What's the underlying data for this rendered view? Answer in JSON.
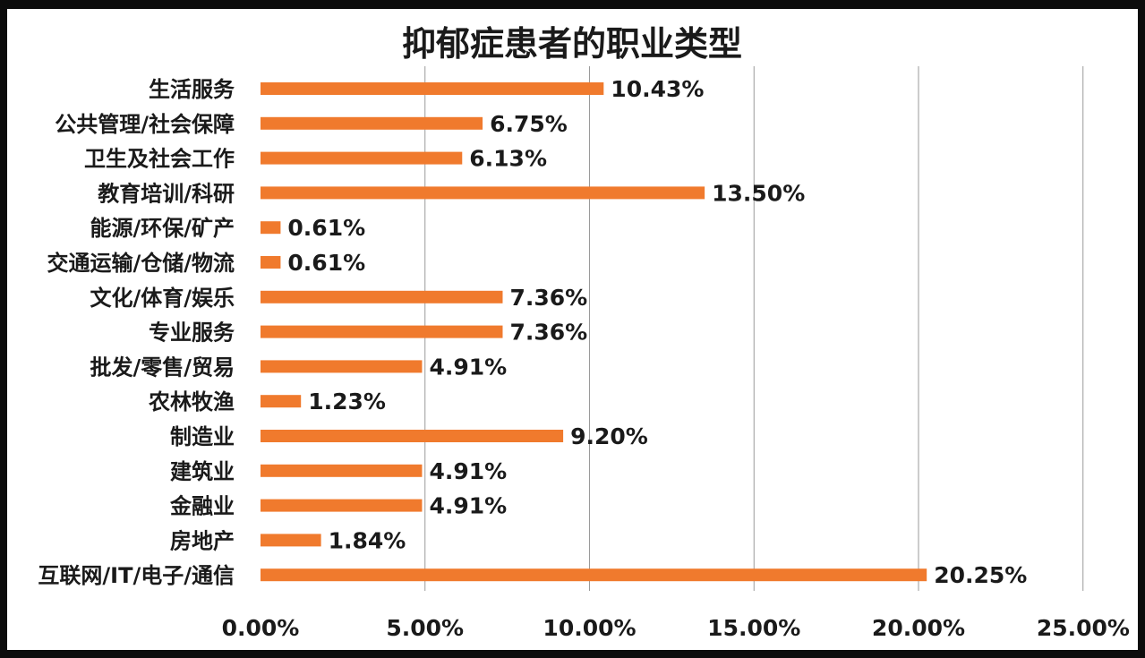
{
  "chart_data": {
    "type": "bar",
    "orientation": "horizontal",
    "title": "抑郁症患者的职业类型",
    "categories": [
      "生活服务",
      "公共管理/社会保障",
      "卫生及社会工作",
      "教育培训/科研",
      "能源/环保/矿产",
      "交通运输/仓储/物流",
      "文化/体育/娱乐",
      "专业服务",
      "批发/零售/贸易",
      "农林牧渔",
      "制造业",
      "建筑业",
      "金融业",
      "房地产",
      "互联网/IT/电子/通信"
    ],
    "values": [
      10.43,
      6.75,
      6.13,
      13.5,
      0.61,
      0.61,
      7.36,
      7.36,
      4.91,
      1.23,
      9.2,
      4.91,
      4.91,
      1.84,
      20.25
    ],
    "value_labels": [
      "10.43%",
      "6.75%",
      "6.13%",
      "13.50%",
      "0.61%",
      "0.61%",
      "7.36%",
      "7.36%",
      "4.91%",
      "1.23%",
      "9.20%",
      "4.91%",
      "4.91%",
      "1.84%",
      "20.25%"
    ],
    "xlim": [
      0,
      25
    ],
    "x_ticks": [
      0,
      5,
      10,
      15,
      20,
      25
    ],
    "x_tick_labels": [
      "0.00%",
      "5.00%",
      "10.00%",
      "15.00%",
      "20.00%",
      "25.00%"
    ],
    "xlabel": "",
    "ylabel": "",
    "grid": "vertical",
    "legend": "none",
    "bar_color": "#f07a2d"
  }
}
